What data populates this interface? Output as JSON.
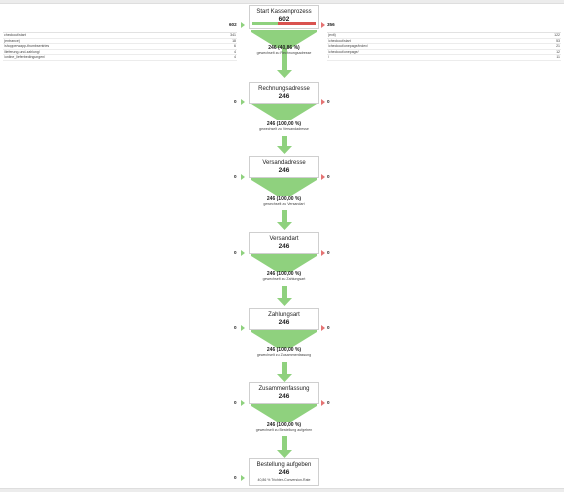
{
  "stages": [
    {
      "name": "Start Kassenprozess",
      "count": "602"
    },
    {
      "name": "Rechnungsadresse",
      "count": "246"
    },
    {
      "name": "Versandadresse",
      "count": "246"
    },
    {
      "name": "Versandart",
      "count": "246"
    },
    {
      "name": "Zahlungsart",
      "count": "246"
    },
    {
      "name": "Zusammenfassung",
      "count": "246"
    },
    {
      "name": "Bestellung aufgeben",
      "count": "246"
    }
  ],
  "start_bar_fraction": 0.4086,
  "conversions": [
    {
      "pct": "246 (40,86 %)",
      "label": "gewechselt zu Rechnungsadresse"
    },
    {
      "pct": "246 (100,00 %)",
      "label": "gewechselt zu Versandadresse"
    },
    {
      "pct": "246 (100,00 %)",
      "label": "gewechselt zu Versandart"
    },
    {
      "pct": "246 (100,00 %)",
      "label": "gewechselt zu Zahlungsart"
    },
    {
      "pct": "246 (100,00 %)",
      "label": "gewechselt zu Zusammenfassung"
    },
    {
      "pct": "246 (100,00 %)",
      "label": "gewechselt zu Bestellung aufgeben"
    }
  ],
  "entrances": [
    "602",
    "0",
    "0",
    "0",
    "0",
    "0",
    "0"
  ],
  "exits": [
    "356",
    "0",
    "0",
    "0",
    "0",
    "0"
  ],
  "entrance_sources": [
    {
      "label": "checkout/start",
      "value": "341"
    },
    {
      "label": "(entrance)",
      "value": "18"
    },
    {
      "label": "/shopperwapp-thumbsentries",
      "value": "6"
    },
    {
      "label": "/lieferung-und-zahlung/",
      "value": "4"
    },
    {
      "label": "/online_lieferbedingungen/",
      "value": "4"
    }
  ],
  "exit_targets": [
    {
      "label": "(exit)",
      "value": "122"
    },
    {
      "label": "/checkout/start",
      "value": "53"
    },
    {
      "label": "/checkout/onepage/index/",
      "value": "21"
    },
    {
      "label": "/checkout/onepage/",
      "value": "12"
    },
    {
      "label": "/",
      "value": "11"
    }
  ],
  "final_rate": "40,86 % Trichter-Conversion-Rate",
  "colors": {
    "green": "#8fd17e",
    "red": "#d9534f",
    "border": "#cfcfcf"
  }
}
